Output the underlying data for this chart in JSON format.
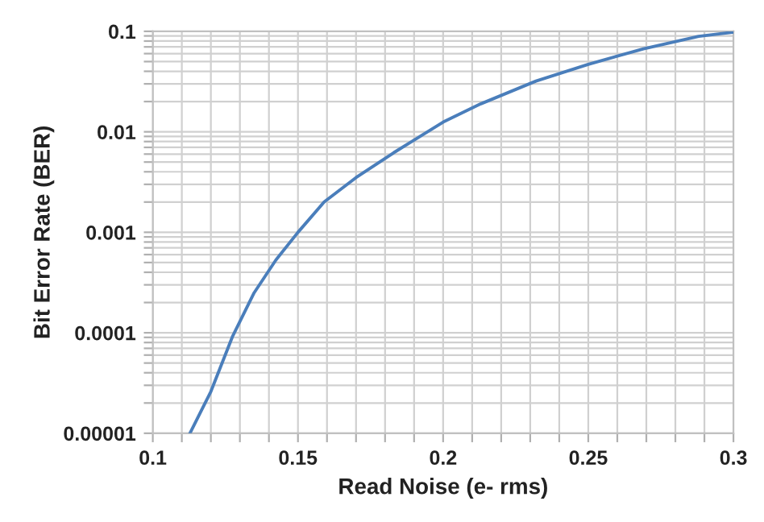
{
  "chart_data": {
    "type": "line",
    "xlabel": "Read Noise (e- rms)",
    "ylabel": "Bit Error Rate (BER)",
    "log": "y",
    "grid": true,
    "marker": "none",
    "line_style": "solid",
    "x": [
      0.1128,
      0.12,
      0.1274,
      0.1349,
      0.1424,
      0.15,
      0.159,
      0.17,
      0.183,
      0.2,
      0.213,
      0.232,
      0.25,
      0.269,
      0.288,
      0.3
    ],
    "series": [
      {
        "color": "#4a7ebb",
        "values": [
          1e-05,
          2.6e-05,
          9.1e-05,
          0.00025,
          0.00053,
          0.001,
          0.002,
          0.0035,
          0.0062,
          0.0125,
          0.019,
          0.032,
          0.047,
          0.067,
          0.089,
          0.098
        ]
      }
    ],
    "xlim": [
      0.1,
      0.3
    ],
    "xticks": [
      {
        "value": 0.1,
        "label": "0.1"
      },
      {
        "value": 0.11,
        "label": null
      },
      {
        "value": 0.12,
        "label": null
      },
      {
        "value": 0.13,
        "label": null
      },
      {
        "value": 0.14,
        "label": null
      },
      {
        "value": 0.15,
        "label": "0.15"
      },
      {
        "value": 0.16,
        "label": null
      },
      {
        "value": 0.17,
        "label": null
      },
      {
        "value": 0.18,
        "label": null
      },
      {
        "value": 0.19,
        "label": null
      },
      {
        "value": 0.2,
        "label": "0.2"
      },
      {
        "value": 0.21,
        "label": null
      },
      {
        "value": 0.22,
        "label": null
      },
      {
        "value": 0.23,
        "label": null
      },
      {
        "value": 0.24,
        "label": null
      },
      {
        "value": 0.25,
        "label": "0.25"
      },
      {
        "value": 0.26,
        "label": null
      },
      {
        "value": 0.27,
        "label": null
      },
      {
        "value": 0.28,
        "label": null
      },
      {
        "value": 0.29,
        "label": null
      },
      {
        "value": 0.3,
        "label": "0.3"
      }
    ],
    "ylim": [
      1e-05,
      0.1
    ],
    "yticks": [
      {
        "value": 1e-05,
        "label": "0.00001"
      },
      {
        "value": 2e-05,
        "label": null
      },
      {
        "value": 3e-05,
        "label": null
      },
      {
        "value": 4e-05,
        "label": null
      },
      {
        "value": 5e-05,
        "label": null
      },
      {
        "value": 6e-05,
        "label": null
      },
      {
        "value": 7e-05,
        "label": null
      },
      {
        "value": 8e-05,
        "label": null
      },
      {
        "value": 9e-05,
        "label": null
      },
      {
        "value": 0.0001,
        "label": "0.0001"
      },
      {
        "value": 0.0002,
        "label": null
      },
      {
        "value": 0.0003,
        "label": null
      },
      {
        "value": 0.0004,
        "label": null
      },
      {
        "value": 0.0005,
        "label": null
      },
      {
        "value": 0.0006,
        "label": null
      },
      {
        "value": 0.0007,
        "label": null
      },
      {
        "value": 0.0008,
        "label": null
      },
      {
        "value": 0.0009,
        "label": null
      },
      {
        "value": 0.001,
        "label": "0.001"
      },
      {
        "value": 0.002,
        "label": null
      },
      {
        "value": 0.003,
        "label": null
      },
      {
        "value": 0.004,
        "label": null
      },
      {
        "value": 0.005,
        "label": null
      },
      {
        "value": 0.006,
        "label": null
      },
      {
        "value": 0.007,
        "label": null
      },
      {
        "value": 0.008,
        "label": null
      },
      {
        "value": 0.009,
        "label": null
      },
      {
        "value": 0.01,
        "label": "0.01"
      },
      {
        "value": 0.02,
        "label": null
      },
      {
        "value": 0.03,
        "label": null
      },
      {
        "value": 0.04,
        "label": null
      },
      {
        "value": 0.05,
        "label": null
      },
      {
        "value": 0.06,
        "label": null
      },
      {
        "value": 0.07,
        "label": null
      },
      {
        "value": 0.08,
        "label": null
      },
      {
        "value": 0.09,
        "label": null
      },
      {
        "value": 0.1,
        "label": "0.1"
      }
    ]
  }
}
